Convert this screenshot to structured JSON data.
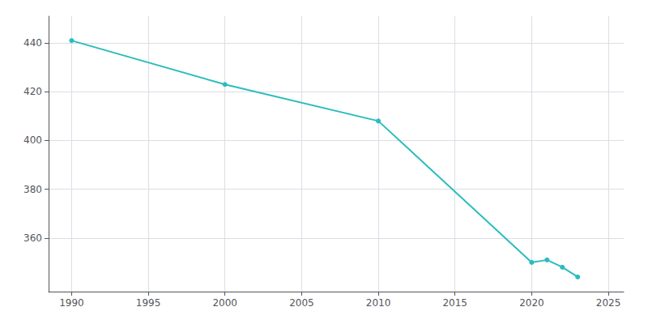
{
  "chart_data": {
    "type": "line",
    "x": [
      1990,
      2000,
      2010,
      2020,
      2021,
      2022,
      2023
    ],
    "values": [
      441,
      423,
      408,
      350,
      351,
      348,
      344
    ],
    "color": "#2bbcbe",
    "marker": "circle",
    "xlim": [
      1988.5,
      2026
    ],
    "ylim": [
      338,
      451
    ],
    "xticks": [
      1990,
      1995,
      2000,
      2005,
      2010,
      2015,
      2020,
      2025
    ],
    "yticks": [
      360,
      380,
      400,
      420,
      440
    ],
    "grid": true
  }
}
